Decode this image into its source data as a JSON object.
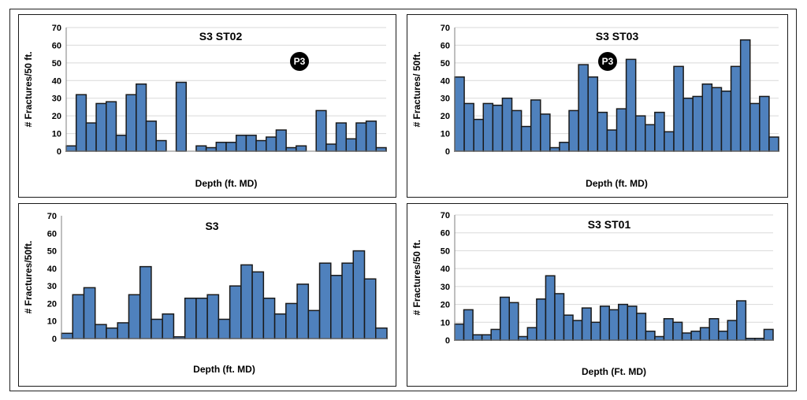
{
  "chart_data": [
    {
      "type": "bar",
      "title": "S3 ST02",
      "xlabel": "Depth (ft. MD)",
      "ylabel": "# Fractures/50 ft.",
      "ylim": [
        0,
        70
      ],
      "yticks": [
        0,
        10,
        20,
        30,
        40,
        50,
        60,
        70
      ],
      "grid": true,
      "annotation": "P3",
      "series": [
        {
          "values": [
            3,
            32,
            16,
            27,
            28,
            9,
            32,
            38,
            17,
            6,
            0,
            39,
            0,
            3,
            2,
            5,
            5,
            9,
            9,
            6,
            8,
            12,
            2,
            3,
            0,
            23,
            4,
            16,
            7,
            16,
            17,
            2
          ]
        }
      ]
    },
    {
      "type": "bar",
      "title": "S3 ST03",
      "xlabel": "Depth (ft. MD)",
      "ylabel": "# Fractures/ 50ft.",
      "ylim": [
        0,
        70
      ],
      "yticks": [
        0,
        10,
        20,
        30,
        40,
        50,
        60,
        70
      ],
      "grid": true,
      "annotation": "P3",
      "series": [
        {
          "values": [
            42,
            27,
            18,
            27,
            26,
            30,
            23,
            14,
            29,
            21,
            2,
            5,
            23,
            49,
            42,
            22,
            12,
            24,
            52,
            20,
            15,
            22,
            11,
            48,
            30,
            31,
            38,
            36,
            34,
            48,
            63,
            27,
            31,
            8
          ]
        }
      ]
    },
    {
      "type": "bar",
      "title": "S3",
      "xlabel": "Depth (ft. MD)",
      "ylabel": "# Fractures/50ft.",
      "ylim": [
        0,
        70
      ],
      "yticks": [
        0,
        10,
        20,
        30,
        40,
        50,
        60,
        70
      ],
      "grid": false,
      "series": [
        {
          "values": [
            3,
            25,
            29,
            8,
            6,
            9,
            25,
            41,
            11,
            14,
            1,
            23,
            23,
            25,
            11,
            30,
            42,
            38,
            23,
            14,
            20,
            31,
            16,
            43,
            36,
            43,
            50,
            34,
            6
          ]
        }
      ]
    },
    {
      "type": "bar",
      "title": "S3 ST01",
      "xlabel": "Depth (Ft. MD)",
      "ylabel": "# Fractures/50 ft.",
      "ylim": [
        0,
        70
      ],
      "yticks": [
        0,
        10,
        20,
        30,
        40,
        50,
        60,
        70
      ],
      "grid": true,
      "series": [
        {
          "values": [
            9,
            17,
            3,
            3,
            6,
            24,
            21,
            2,
            7,
            23,
            36,
            26,
            14,
            11,
            18,
            10,
            19,
            17,
            20,
            19,
            15,
            5,
            2,
            12,
            10,
            4,
            5,
            7,
            12,
            5,
            11,
            22,
            1,
            1,
            6
          ]
        }
      ]
    }
  ],
  "colors": {
    "bar_fill": "#4f81bd",
    "bar_stroke": "#1a1a1a",
    "badge": "#000000"
  }
}
